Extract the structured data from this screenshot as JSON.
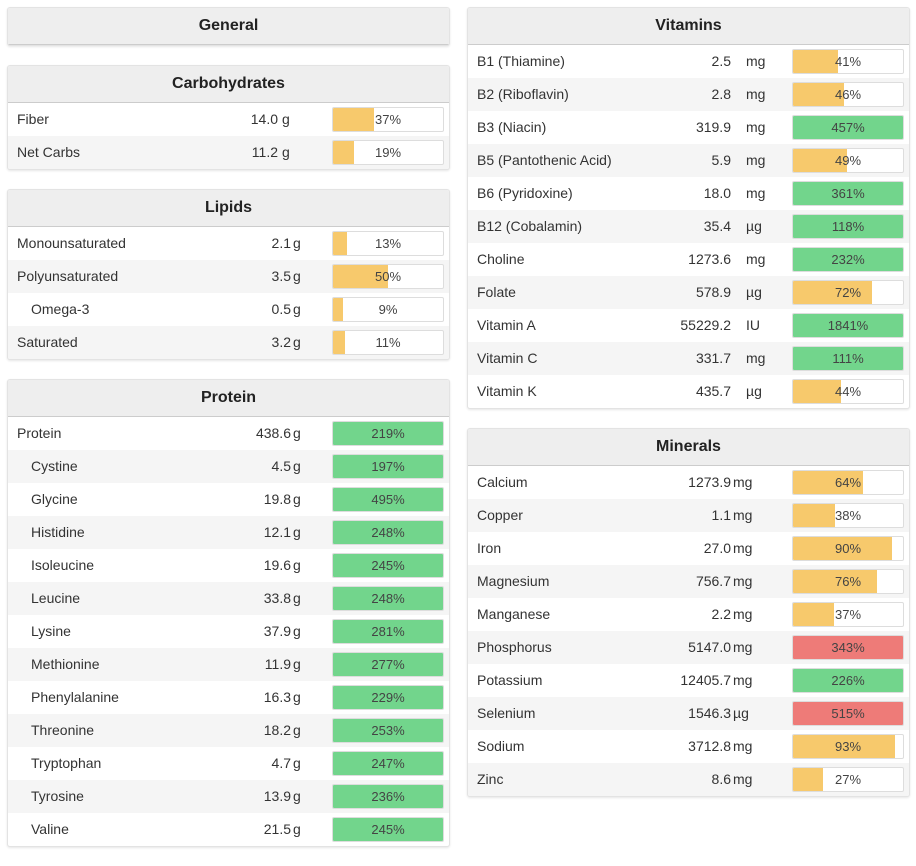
{
  "general": {
    "title": "General"
  },
  "carbohydrates": {
    "title": "Carbohydrates",
    "rows": [
      {
        "name": "Fiber",
        "amount": "14.0",
        "unit": "g",
        "pct": "37%",
        "fill": 0.37,
        "color": "#f7c96c"
      },
      {
        "name": "Net Carbs",
        "amount": "11.2",
        "unit": "g",
        "pct": "19%",
        "fill": 0.19,
        "color": "#f7c96c"
      }
    ]
  },
  "lipids": {
    "title": "Lipids",
    "rows": [
      {
        "name": "Monounsaturated",
        "amount": "2.1",
        "unit": "g",
        "pct": "13%",
        "fill": 0.13,
        "color": "#f7c96c"
      },
      {
        "name": "Polyunsaturated",
        "amount": "3.5",
        "unit": "g",
        "pct": "50%",
        "fill": 0.5,
        "color": "#f7c96c"
      },
      {
        "name": "Omega-3",
        "amount": "0.5",
        "unit": "g",
        "pct": "9%",
        "fill": 0.09,
        "color": "#f7c96c",
        "sub": true
      },
      {
        "name": "Saturated",
        "amount": "3.2",
        "unit": "g",
        "pct": "11%",
        "fill": 0.11,
        "color": "#f7c96c"
      }
    ]
  },
  "protein": {
    "title": "Protein",
    "rows": [
      {
        "name": "Protein",
        "amount": "438.6",
        "unit": "g",
        "pct": "219%",
        "fill": 1,
        "color": "#72d58c"
      },
      {
        "name": "Cystine",
        "amount": "4.5",
        "unit": "g",
        "pct": "197%",
        "fill": 1,
        "color": "#72d58c",
        "sub": true
      },
      {
        "name": "Glycine",
        "amount": "19.8",
        "unit": "g",
        "pct": "495%",
        "fill": 1,
        "color": "#72d58c",
        "sub": true
      },
      {
        "name": "Histidine",
        "amount": "12.1",
        "unit": "g",
        "pct": "248%",
        "fill": 1,
        "color": "#72d58c",
        "sub": true
      },
      {
        "name": "Isoleucine",
        "amount": "19.6",
        "unit": "g",
        "pct": "245%",
        "fill": 1,
        "color": "#72d58c",
        "sub": true
      },
      {
        "name": "Leucine",
        "amount": "33.8",
        "unit": "g",
        "pct": "248%",
        "fill": 1,
        "color": "#72d58c",
        "sub": true
      },
      {
        "name": "Lysine",
        "amount": "37.9",
        "unit": "g",
        "pct": "281%",
        "fill": 1,
        "color": "#72d58c",
        "sub": true
      },
      {
        "name": "Methionine",
        "amount": "11.9",
        "unit": "g",
        "pct": "277%",
        "fill": 1,
        "color": "#72d58c",
        "sub": true
      },
      {
        "name": "Phenylalanine",
        "amount": "16.3",
        "unit": "g",
        "pct": "229%",
        "fill": 1,
        "color": "#72d58c",
        "sub": true
      },
      {
        "name": "Threonine",
        "amount": "18.2",
        "unit": "g",
        "pct": "253%",
        "fill": 1,
        "color": "#72d58c",
        "sub": true
      },
      {
        "name": "Tryptophan",
        "amount": "4.7",
        "unit": "g",
        "pct": "247%",
        "fill": 1,
        "color": "#72d58c",
        "sub": true
      },
      {
        "name": "Tyrosine",
        "amount": "13.9",
        "unit": "g",
        "pct": "236%",
        "fill": 1,
        "color": "#72d58c",
        "sub": true
      },
      {
        "name": "Valine",
        "amount": "21.5",
        "unit": "g",
        "pct": "245%",
        "fill": 1,
        "color": "#72d58c",
        "sub": true
      }
    ]
  },
  "vitamins": {
    "title": "Vitamins",
    "rows": [
      {
        "name": "B1 (Thiamine)",
        "amount": "2.5",
        "unit": "mg",
        "pct": "41%",
        "fill": 0.41,
        "color": "#f7c96c"
      },
      {
        "name": "B2 (Riboflavin)",
        "amount": "2.8",
        "unit": "mg",
        "pct": "46%",
        "fill": 0.46,
        "color": "#f7c96c"
      },
      {
        "name": "B3 (Niacin)",
        "amount": "319.9",
        "unit": "mg",
        "pct": "457%",
        "fill": 1,
        "color": "#72d58c"
      },
      {
        "name": "B5 (Pantothenic Acid)",
        "amount": "5.9",
        "unit": "mg",
        "pct": "49%",
        "fill": 0.49,
        "color": "#f7c96c"
      },
      {
        "name": "B6 (Pyridoxine)",
        "amount": "18.0",
        "unit": "mg",
        "pct": "361%",
        "fill": 1,
        "color": "#72d58c"
      },
      {
        "name": "B12 (Cobalamin)",
        "amount": "35.4",
        "unit": "µg",
        "pct": "118%",
        "fill": 1,
        "color": "#72d58c"
      },
      {
        "name": "Choline",
        "amount": "1273.6",
        "unit": "mg",
        "pct": "232%",
        "fill": 1,
        "color": "#72d58c"
      },
      {
        "name": "Folate",
        "amount": "578.9",
        "unit": "µg",
        "pct": "72%",
        "fill": 0.72,
        "color": "#f7c96c"
      },
      {
        "name": "Vitamin A",
        "amount": "55229.2",
        "unit": "IU",
        "pct": "1841%",
        "fill": 1,
        "color": "#72d58c"
      },
      {
        "name": "Vitamin C",
        "amount": "331.7",
        "unit": "mg",
        "pct": "111%",
        "fill": 1,
        "color": "#72d58c"
      },
      {
        "name": "Vitamin K",
        "amount": "435.7",
        "unit": "µg",
        "pct": "44%",
        "fill": 0.44,
        "color": "#f7c96c"
      }
    ]
  },
  "minerals": {
    "title": "Minerals",
    "rows": [
      {
        "name": "Calcium",
        "amount": "1273.9",
        "unit": "mg",
        "pct": "64%",
        "fill": 0.64,
        "color": "#f7c96c"
      },
      {
        "name": "Copper",
        "amount": "1.1",
        "unit": "mg",
        "pct": "38%",
        "fill": 0.38,
        "color": "#f7c96c"
      },
      {
        "name": "Iron",
        "amount": "27.0",
        "unit": "mg",
        "pct": "90%",
        "fill": 0.9,
        "color": "#f7c96c"
      },
      {
        "name": "Magnesium",
        "amount": "756.7",
        "unit": "mg",
        "pct": "76%",
        "fill": 0.76,
        "color": "#f7c96c"
      },
      {
        "name": "Manganese",
        "amount": "2.2",
        "unit": "mg",
        "pct": "37%",
        "fill": 0.37,
        "color": "#f7c96c"
      },
      {
        "name": "Phosphorus",
        "amount": "5147.0",
        "unit": "mg",
        "pct": "343%",
        "fill": 1,
        "color": "#ee7b78"
      },
      {
        "name": "Potassium",
        "amount": "12405.7",
        "unit": "mg",
        "pct": "226%",
        "fill": 1,
        "color": "#72d58c"
      },
      {
        "name": "Selenium",
        "amount": "1546.3",
        "unit": "µg",
        "pct": "515%",
        "fill": 1,
        "color": "#ee7b78"
      },
      {
        "name": "Sodium",
        "amount": "3712.8",
        "unit": "mg",
        "pct": "93%",
        "fill": 0.93,
        "color": "#f7c96c"
      },
      {
        "name": "Zinc",
        "amount": "8.6",
        "unit": "mg",
        "pct": "27%",
        "fill": 0.27,
        "color": "#f7c96c"
      }
    ]
  }
}
